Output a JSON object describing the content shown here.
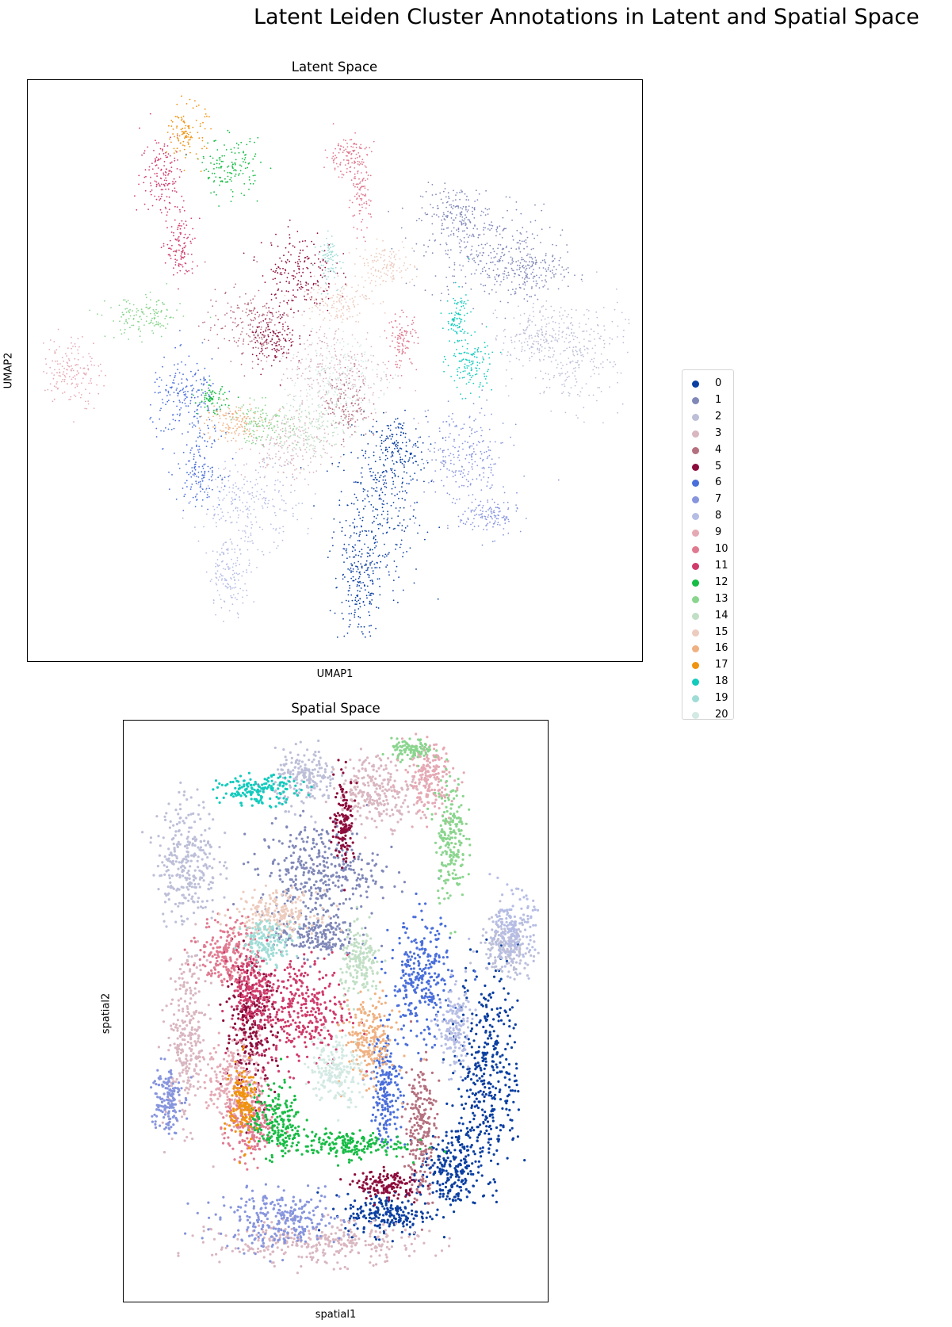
{
  "figure": {
    "title": "Latent Leiden Cluster Annotations in Latent and Spatial Space"
  },
  "legend": {
    "entries": [
      {
        "label": "0",
        "color": "#0b3fa1"
      },
      {
        "label": "1",
        "color": "#8088b8"
      },
      {
        "label": "2",
        "color": "#bdbfd8"
      },
      {
        "label": "3",
        "color": "#d9b6c0"
      },
      {
        "label": "4",
        "color": "#b5707f"
      },
      {
        "label": "5",
        "color": "#8c0c3c"
      },
      {
        "label": "6",
        "color": "#4a6fdb"
      },
      {
        "label": "7",
        "color": "#8795dd"
      },
      {
        "label": "8",
        "color": "#b6bde4"
      },
      {
        "label": "9",
        "color": "#e5a9b4"
      },
      {
        "label": "10",
        "color": "#e07a90"
      },
      {
        "label": "11",
        "color": "#cf3c6b"
      },
      {
        "label": "12",
        "color": "#16bc44"
      },
      {
        "label": "13",
        "color": "#8ad58e"
      },
      {
        "label": "14",
        "color": "#c1dfc5"
      },
      {
        "label": "15",
        "color": "#ecccbe"
      },
      {
        "label": "16",
        "color": "#f0b182"
      },
      {
        "label": "17",
        "color": "#f0930f"
      },
      {
        "label": "18",
        "color": "#12cbbd"
      },
      {
        "label": "19",
        "color": "#9fdcd6"
      },
      {
        "label": "20",
        "color": "#d3e9e3"
      }
    ]
  },
  "chart_data": [
    {
      "type": "scatter",
      "title": "Latent Space",
      "xlabel": "UMAP1",
      "ylabel": "UMAP2",
      "ticks": "none",
      "note_values": "approximate cluster regions read from the plot; UMAP axes have no tick values, coordinates in 0-1 normalized axis units",
      "series": [
        {
          "name": "0",
          "regions": [
            [
              0.57,
              0.25,
              0.06,
              0.12
            ],
            [
              0.54,
              0.13,
              0.03,
              0.08
            ],
            [
              0.6,
              0.36,
              0.04,
              0.05
            ]
          ]
        },
        {
          "name": "1",
          "regions": [
            [
              0.75,
              0.7,
              0.09,
              0.07
            ],
            [
              0.7,
              0.77,
              0.05,
              0.04
            ],
            [
              0.82,
              0.67,
              0.05,
              0.03
            ]
          ]
        },
        {
          "name": "2",
          "regions": [
            [
              0.89,
              0.53,
              0.07,
              0.08
            ],
            [
              0.82,
              0.56,
              0.04,
              0.04
            ]
          ]
        },
        {
          "name": "3",
          "regions": [
            [
              0.5,
              0.5,
              0.08,
              0.07
            ],
            [
              0.42,
              0.37,
              0.06,
              0.05
            ]
          ]
        },
        {
          "name": "4",
          "regions": [
            [
              0.36,
              0.58,
              0.06,
              0.05
            ],
            [
              0.52,
              0.44,
              0.03,
              0.05
            ]
          ]
        },
        {
          "name": "5",
          "regions": [
            [
              0.44,
              0.67,
              0.05,
              0.06
            ],
            [
              0.4,
              0.55,
              0.03,
              0.04
            ]
          ]
        },
        {
          "name": "6",
          "regions": [
            [
              0.26,
              0.45,
              0.05,
              0.06
            ],
            [
              0.28,
              0.33,
              0.03,
              0.05
            ]
          ]
        },
        {
          "name": "7",
          "regions": [
            [
              0.71,
              0.35,
              0.06,
              0.07
            ],
            [
              0.75,
              0.25,
              0.04,
              0.03
            ]
          ]
        },
        {
          "name": "8",
          "regions": [
            [
              0.36,
              0.27,
              0.07,
              0.06
            ],
            [
              0.33,
              0.15,
              0.03,
              0.05
            ]
          ]
        },
        {
          "name": "9",
          "regions": [
            [
              0.07,
              0.5,
              0.04,
              0.05
            ]
          ]
        },
        {
          "name": "10",
          "regions": [
            [
              0.52,
              0.87,
              0.03,
              0.03
            ],
            [
              0.54,
              0.8,
              0.015,
              0.05
            ],
            [
              0.61,
              0.55,
              0.02,
              0.04
            ]
          ]
        },
        {
          "name": "11",
          "regions": [
            [
              0.22,
              0.84,
              0.03,
              0.06
            ],
            [
              0.25,
              0.71,
              0.02,
              0.05
            ]
          ]
        },
        {
          "name": "12",
          "regions": [
            [
              0.33,
              0.85,
              0.04,
              0.04
            ],
            [
              0.3,
              0.45,
              0.02,
              0.02
            ]
          ]
        },
        {
          "name": "13",
          "regions": [
            [
              0.19,
              0.59,
              0.05,
              0.03
            ],
            [
              0.38,
              0.41,
              0.04,
              0.03
            ]
          ]
        },
        {
          "name": "14",
          "regions": [
            [
              0.46,
              0.4,
              0.05,
              0.04
            ]
          ]
        },
        {
          "name": "15",
          "regions": [
            [
              0.58,
              0.68,
              0.04,
              0.03
            ],
            [
              0.5,
              0.62,
              0.05,
              0.03
            ]
          ]
        },
        {
          "name": "16",
          "regions": [
            [
              0.33,
              0.41,
              0.04,
              0.03
            ]
          ]
        },
        {
          "name": "17",
          "regions": [
            [
              0.26,
              0.91,
              0.025,
              0.04
            ]
          ]
        },
        {
          "name": "18",
          "regions": [
            [
              0.72,
              0.51,
              0.03,
              0.04
            ],
            [
              0.7,
              0.59,
              0.015,
              0.04
            ]
          ]
        },
        {
          "name": "19",
          "regions": [
            [
              0.49,
              0.69,
              0.015,
              0.035
            ]
          ]
        },
        {
          "name": "20",
          "regions": [
            [
              0.5,
              0.48,
              0.06,
              0.06
            ]
          ]
        }
      ]
    },
    {
      "type": "scatter",
      "title": "Spatial Space",
      "xlabel": "spatial1",
      "ylabel": "spatial2",
      "ticks": "none",
      "note_values": "approximate cluster regions read from the plot; spatial axes have no tick values, coordinates in 0-1 normalized axis units",
      "series": [
        {
          "name": "0",
          "regions": [
            [
              0.86,
              0.4,
              0.06,
              0.15
            ],
            [
              0.77,
              0.22,
              0.06,
              0.06
            ],
            [
              0.62,
              0.15,
              0.08,
              0.03
            ]
          ]
        },
        {
          "name": "1",
          "regions": [
            [
              0.46,
              0.74,
              0.12,
              0.07
            ],
            [
              0.45,
              0.63,
              0.08,
              0.03
            ]
          ]
        },
        {
          "name": "2",
          "regions": [
            [
              0.15,
              0.76,
              0.06,
              0.09
            ],
            [
              0.43,
              0.9,
              0.06,
              0.04
            ],
            [
              0.9,
              0.61,
              0.05,
              0.04
            ]
          ]
        },
        {
          "name": "3",
          "regions": [
            [
              0.15,
              0.45,
              0.04,
              0.12
            ],
            [
              0.46,
              0.1,
              0.2,
              0.03
            ],
            [
              0.6,
              0.88,
              0.08,
              0.05
            ]
          ]
        },
        {
          "name": "4",
          "regions": [
            [
              0.7,
              0.3,
              0.03,
              0.1
            ]
          ]
        },
        {
          "name": "5",
          "regions": [
            [
              0.3,
              0.47,
              0.05,
              0.09
            ],
            [
              0.52,
              0.83,
              0.02,
              0.06
            ],
            [
              0.62,
              0.2,
              0.06,
              0.02
            ]
          ]
        },
        {
          "name": "6",
          "regions": [
            [
              0.7,
              0.55,
              0.06,
              0.09
            ],
            [
              0.62,
              0.37,
              0.03,
              0.08
            ]
          ]
        },
        {
          "name": "7",
          "regions": [
            [
              0.37,
              0.14,
              0.12,
              0.04
            ],
            [
              0.1,
              0.35,
              0.03,
              0.05
            ]
          ]
        },
        {
          "name": "8",
          "regions": [
            [
              0.92,
              0.64,
              0.04,
              0.05
            ],
            [
              0.78,
              0.47,
              0.03,
              0.06
            ]
          ]
        },
        {
          "name": "9",
          "regions": [
            [
              0.72,
              0.9,
              0.05,
              0.05
            ],
            [
              0.26,
              0.38,
              0.05,
              0.06
            ]
          ]
        },
        {
          "name": "10",
          "regions": [
            [
              0.25,
              0.6,
              0.06,
              0.05
            ],
            [
              0.3,
              0.3,
              0.05,
              0.05
            ]
          ]
        },
        {
          "name": "11",
          "regions": [
            [
              0.42,
              0.5,
              0.09,
              0.08
            ],
            [
              0.3,
              0.54,
              0.04,
              0.05
            ]
          ]
        },
        {
          "name": "12",
          "regions": [
            [
              0.52,
              0.27,
              0.12,
              0.02
            ],
            [
              0.36,
              0.31,
              0.05,
              0.05
            ]
          ]
        },
        {
          "name": "13",
          "regions": [
            [
              0.77,
              0.8,
              0.03,
              0.09
            ],
            [
              0.68,
              0.95,
              0.04,
              0.015
            ]
          ]
        },
        {
          "name": "14",
          "regions": [
            [
              0.56,
              0.58,
              0.04,
              0.05
            ]
          ]
        },
        {
          "name": "15",
          "regions": [
            [
              0.36,
              0.67,
              0.08,
              0.03
            ]
          ]
        },
        {
          "name": "16",
          "regions": [
            [
              0.58,
              0.45,
              0.05,
              0.06
            ]
          ]
        },
        {
          "name": "17",
          "regions": [
            [
              0.28,
              0.34,
              0.025,
              0.06
            ]
          ]
        },
        {
          "name": "18",
          "regions": [
            [
              0.32,
              0.88,
              0.08,
              0.02
            ]
          ]
        },
        {
          "name": "19",
          "regions": [
            [
              0.34,
              0.62,
              0.05,
              0.03
            ]
          ]
        },
        {
          "name": "20",
          "regions": [
            [
              0.5,
              0.4,
              0.05,
              0.05
            ]
          ]
        }
      ]
    }
  ]
}
